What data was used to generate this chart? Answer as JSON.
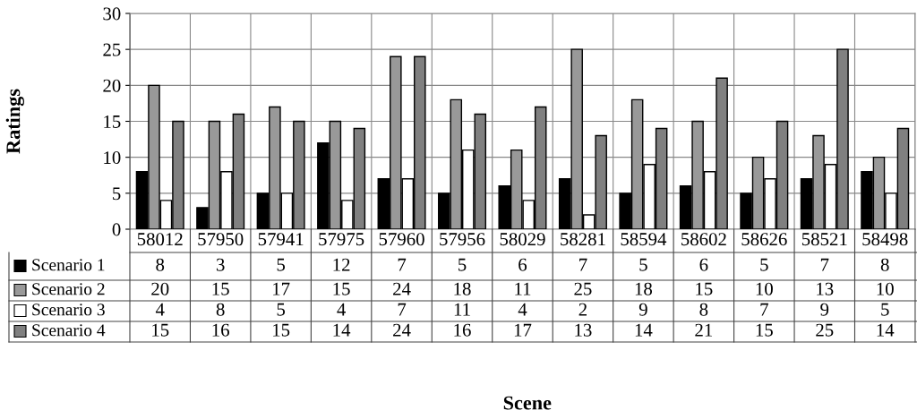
{
  "chart_data": {
    "type": "bar",
    "annotations": [
      "Scene"
    ],
    "ylabel": "Ratings",
    "categories": [
      "58012",
      "57950",
      "57941",
      "57975",
      "57960",
      "57956",
      "58029",
      "58281",
      "58594",
      "58602",
      "58626",
      "58521",
      "58498"
    ],
    "series": [
      {
        "name": "Scenario 1",
        "color": "#000000",
        "values": [
          8,
          3,
          5,
          12,
          7,
          5,
          6,
          7,
          5,
          6,
          5,
          7,
          8
        ]
      },
      {
        "name": "Scenario 2",
        "color": "#999999",
        "values": [
          20,
          15,
          17,
          15,
          24,
          18,
          11,
          25,
          18,
          15,
          10,
          13,
          10
        ]
      },
      {
        "name": "Scenario 3",
        "color": "#ffffff",
        "values": [
          4,
          8,
          5,
          4,
          7,
          11,
          4,
          2,
          9,
          8,
          7,
          9,
          5
        ]
      },
      {
        "name": "Scenario 4",
        "color": "#808080",
        "values": [
          15,
          16,
          15,
          14,
          24,
          16,
          17,
          13,
          14,
          21,
          15,
          25,
          14
        ]
      }
    ],
    "ylim": [
      0,
      30
    ],
    "yticks": [
      0,
      5,
      10,
      15,
      20,
      25,
      30
    ],
    "grid": true,
    "data_labels": true,
    "legend": "bottom left"
  }
}
